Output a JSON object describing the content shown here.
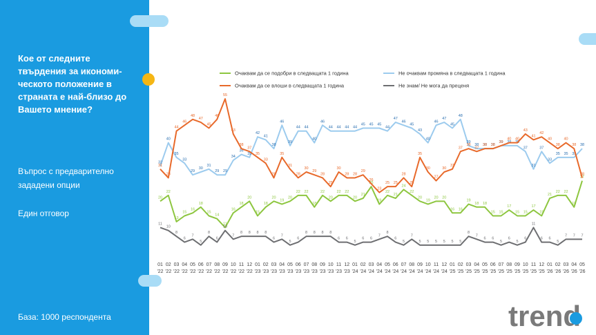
{
  "chart_data": {
    "type": "line",
    "title_lines": [
      "Кое от следните",
      "твърдения за икономи-",
      "ческото положение в",
      "страната е най-близо до",
      "Вашето мнение?"
    ],
    "notes": [
      "Въпрос с предварително",
      "зададени опции",
      "Един отговор"
    ],
    "base": "База:  1000 респондента",
    "logo": "trend",
    "categories": [
      [
        "01",
        "'22"
      ],
      [
        "02",
        "'22"
      ],
      [
        "03",
        "'22"
      ],
      [
        "04",
        "'22"
      ],
      [
        "05",
        "'22"
      ],
      [
        "06",
        "'22"
      ],
      [
        "07",
        "'22"
      ],
      [
        "08",
        "'22"
      ],
      [
        "09",
        "'22"
      ],
      [
        "10",
        "'22"
      ],
      [
        "11",
        "'22"
      ],
      [
        "12",
        "'22"
      ],
      [
        "01",
        "'23"
      ],
      [
        "02",
        "'23"
      ],
      [
        "03",
        "'23"
      ],
      [
        "04",
        "'23"
      ],
      [
        "05",
        "'23"
      ],
      [
        "06",
        "'23"
      ],
      [
        "07",
        "'23"
      ],
      [
        "08",
        "'23"
      ],
      [
        "09",
        "'23"
      ],
      [
        "10",
        "'23"
      ],
      [
        "11",
        "'23"
      ],
      [
        "12",
        "'23"
      ],
      [
        "01",
        "'24"
      ],
      [
        "02",
        "'24"
      ],
      [
        "03",
        "'24"
      ],
      [
        "04",
        "'24"
      ],
      [
        "05",
        "'24"
      ],
      [
        "06",
        "'24"
      ],
      [
        "07",
        "'24"
      ],
      [
        "08",
        "'24"
      ],
      [
        "09",
        "'24"
      ],
      [
        "10",
        "'24"
      ],
      [
        "11",
        "'24"
      ],
      [
        "12",
        "'24"
      ],
      [
        "01",
        "'25"
      ],
      [
        "02",
        "'25"
      ],
      [
        "03",
        "'25"
      ],
      [
        "04",
        "'25"
      ],
      [
        "05",
        "'25"
      ],
      [
        "06",
        "'25"
      ],
      [
        "07",
        "'25"
      ],
      [
        "08",
        "'25"
      ],
      [
        "09",
        "'25"
      ],
      [
        "10",
        "'25"
      ],
      [
        "11",
        "'25"
      ],
      [
        "12",
        "'25"
      ],
      [
        "01",
        "'26"
      ],
      [
        "02",
        "'26"
      ],
      [
        "03",
        "'26"
      ],
      [
        "04",
        "'26"
      ],
      [
        "05",
        "'26"
      ]
    ],
    "ylim": [
      0,
      60
    ],
    "series": [
      {
        "name": "Очаквам да се подобри в следващата 1 година",
        "color": "#8dc63f",
        "values": [
          20,
          22,
          13,
          15,
          16,
          18,
          15,
          14,
          11,
          16,
          18,
          20,
          15,
          18,
          20,
          19,
          20,
          22,
          22,
          18,
          22,
          20,
          22,
          22,
          20,
          21,
          25,
          19,
          22,
          21,
          24,
          22,
          20,
          19,
          20,
          20,
          16,
          16,
          19,
          18,
          18,
          15,
          15,
          17,
          15,
          15,
          17,
          15,
          21,
          22,
          22,
          18,
          27
        ]
      },
      {
        "name": "Не очаквам промяна в следващата 1 година",
        "color": "#9ccbee",
        "values": [
          32,
          40,
          35,
          33,
          29,
          30,
          31,
          29,
          29,
          34,
          36,
          35,
          42,
          41,
          38,
          46,
          39,
          44,
          44,
          40,
          46,
          44,
          44,
          44,
          44,
          45,
          45,
          45,
          44,
          47,
          46,
          45,
          43,
          40,
          46,
          47,
          45,
          48,
          39,
          38,
          38,
          38,
          39,
          39,
          39,
          37,
          31,
          37,
          33,
          35,
          35,
          35,
          38
        ]
      },
      {
        "name": "Очаквам да се влоши в следващата 1 година",
        "color": "#e8692a",
        "values": [
          31,
          28,
          44,
          46,
          48,
          47,
          45,
          48,
          55,
          43,
          38,
          37,
          35,
          33,
          28,
          35,
          31,
          28,
          30,
          29,
          28,
          25,
          30,
          28,
          28,
          29,
          26,
          23,
          25,
          25,
          28,
          25,
          35,
          30,
          27,
          30,
          31,
          37,
          38,
          37,
          38,
          38,
          39,
          40,
          40,
          43,
          41,
          42,
          40,
          38,
          40,
          38,
          28
        ]
      },
      {
        "name": "Не знам/ Не мога да преценя",
        "color": "#6d6e71",
        "values": [
          11,
          10,
          8,
          6,
          7,
          5,
          8,
          6,
          10,
          7,
          8,
          8,
          8,
          8,
          6,
          7,
          5,
          6,
          8,
          8,
          8,
          8,
          6,
          6,
          5,
          6,
          6,
          7,
          8,
          6,
          5,
          7,
          5,
          5,
          5,
          5,
          5,
          5,
          8,
          7,
          6,
          6,
          5,
          6,
          5,
          6,
          11,
          6,
          6,
          5,
          7,
          7,
          7
        ]
      }
    ]
  }
}
